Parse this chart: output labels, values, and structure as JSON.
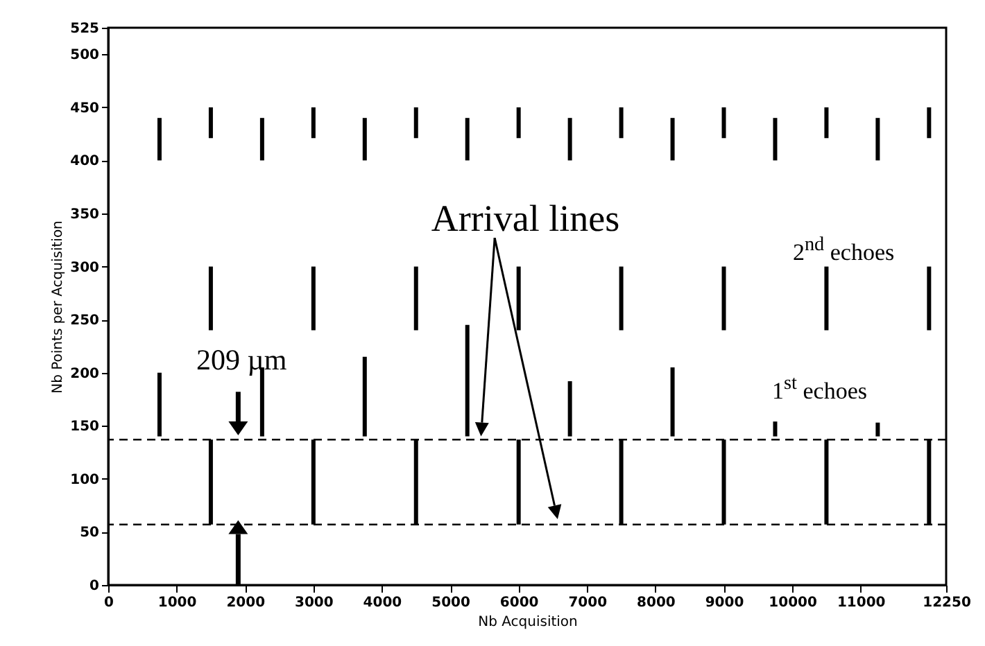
{
  "chart_data": {
    "type": "bar",
    "xlabel": "Nb Acquisition",
    "ylabel": "Nb Points per Acquisition",
    "series": [
      {
        "color": "#000000",
        "x": [
          750,
          2250,
          3750,
          5250,
          6750,
          8250,
          9750,
          11250
        ],
        "base": [
          140,
          140,
          140,
          140,
          140,
          140,
          140,
          140
        ],
        "values": [
          60,
          65,
          75,
          105,
          52,
          65,
          14,
          13
        ]
      },
      {
        "color": "#000000",
        "x": [
          750,
          2250,
          3750,
          5250,
          6750,
          8250,
          9750,
          11250
        ],
        "base": [
          400,
          400,
          400,
          400,
          400,
          400,
          400,
          400
        ],
        "values": [
          40,
          40,
          40,
          40,
          40,
          40,
          40,
          40
        ]
      },
      {
        "color": "#000000",
        "x": [
          1500,
          3000,
          4500,
          6000,
          7500,
          9000,
          10500,
          12000
        ],
        "base": [
          57,
          57,
          57,
          57,
          57,
          57,
          57,
          57
        ],
        "values": [
          80,
          80,
          80,
          80,
          80,
          80,
          80,
          80
        ]
      },
      {
        "color": "#000000",
        "x": [
          1500,
          3000,
          4500,
          6000,
          7500,
          9000,
          10500,
          12000
        ],
        "base": [
          240,
          240,
          240,
          240,
          240,
          240,
          240,
          240
        ],
        "values": [
          60,
          60,
          60,
          60,
          60,
          60,
          60,
          60
        ]
      },
      {
        "color": "#000000",
        "x": [
          1500,
          3000,
          4500,
          6000,
          7500,
          9000,
          10500,
          12000
        ],
        "base": [
          421,
          421,
          421,
          421,
          421,
          421,
          421,
          421
        ],
        "values": [
          29,
          29,
          29,
          29,
          29,
          29,
          29,
          29
        ]
      }
    ],
    "xlim": [
      0,
      12250
    ],
    "xticks": [
      0,
      1000,
      2000,
      3000,
      4000,
      5000,
      6000,
      7000,
      8000,
      9000,
      10000,
      11000,
      12250
    ],
    "ylim": [
      0,
      525
    ],
    "yticks": [
      0,
      50,
      100,
      150,
      200,
      250,
      300,
      350,
      400,
      450,
      500,
      525
    ],
    "grid": false,
    "ref_lines": [
      {
        "axis": "y",
        "value": 137,
        "color": "#000000",
        "line_style": "dashed"
      },
      {
        "axis": "y",
        "value": 57,
        "color": "#000000",
        "line_style": "dashed"
      }
    ],
    "annotations": [
      "Arrival lines",
      "209 µm",
      "2$^{nd}$ echoes",
      "1$^{st}$ echoes"
    ]
  }
}
